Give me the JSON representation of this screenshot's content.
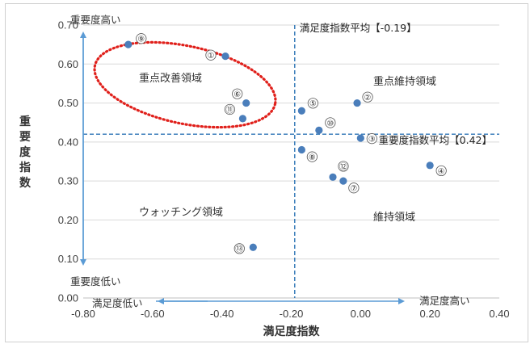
{
  "chart_data": {
    "type": "scatter",
    "title": "",
    "xlabel": "満足度指数",
    "ylabel": "重要度指数",
    "xlim": [
      -0.8,
      0.4
    ],
    "ylim": [
      0.0,
      0.7
    ],
    "x_ticks": [
      "-0.80",
      "-0.60",
      "-0.40",
      "-0.20",
      "0.00",
      "0.20",
      "0.40"
    ],
    "y_ticks": [
      "0.00",
      "0.10",
      "0.20",
      "0.30",
      "0.40",
      "0.50",
      "0.60",
      "0.70"
    ],
    "grid": "horizontal",
    "marker_color": "#4a7ebb",
    "points": [
      {
        "label": "⑨",
        "x": -0.67,
        "y": 0.65
      },
      {
        "label": "①",
        "x": -0.39,
        "y": 0.62
      },
      {
        "label": "⑥",
        "x": -0.33,
        "y": 0.5
      },
      {
        "label": "⑪",
        "x": -0.34,
        "y": 0.46
      },
      {
        "label": "⑤",
        "x": -0.17,
        "y": 0.48
      },
      {
        "label": "②",
        "x": -0.01,
        "y": 0.5
      },
      {
        "label": "⑩",
        "x": -0.12,
        "y": 0.43
      },
      {
        "label": "③",
        "x": 0.0,
        "y": 0.41
      },
      {
        "label": "⑧",
        "x": -0.17,
        "y": 0.38
      },
      {
        "label": "④",
        "x": 0.2,
        "y": 0.34
      },
      {
        "label": "⑫",
        "x": -0.08,
        "y": 0.31
      },
      {
        "label": "⑦",
        "x": -0.05,
        "y": 0.3
      },
      {
        "label": "⑬",
        "x": -0.31,
        "y": 0.13
      }
    ],
    "reference_lines": {
      "x_avg": {
        "value": -0.19,
        "label": "満足度指数平均【-0.19】"
      },
      "y_avg": {
        "value": 0.42,
        "label": "重要度指数平均【0.42】"
      }
    },
    "region_labels": {
      "top_left": "重点改善領域",
      "top_right": "重点維持領域",
      "bottom_left": "ウォッチング領域",
      "bottom_right": "維持領域"
    },
    "arrow_notes": {
      "importance_high": "重要度高い",
      "importance_low": "重要度低い",
      "satisfaction_low": "満足度低い",
      "satisfaction_high": "満足度高い"
    },
    "highlight": {
      "color": "#e0201b",
      "style": "dotted",
      "target": "重点改善領域"
    },
    "colors": {
      "avg_line": "#2e75b6",
      "arrow": "#5b9bd5",
      "grid": "#d9d9d9"
    }
  }
}
